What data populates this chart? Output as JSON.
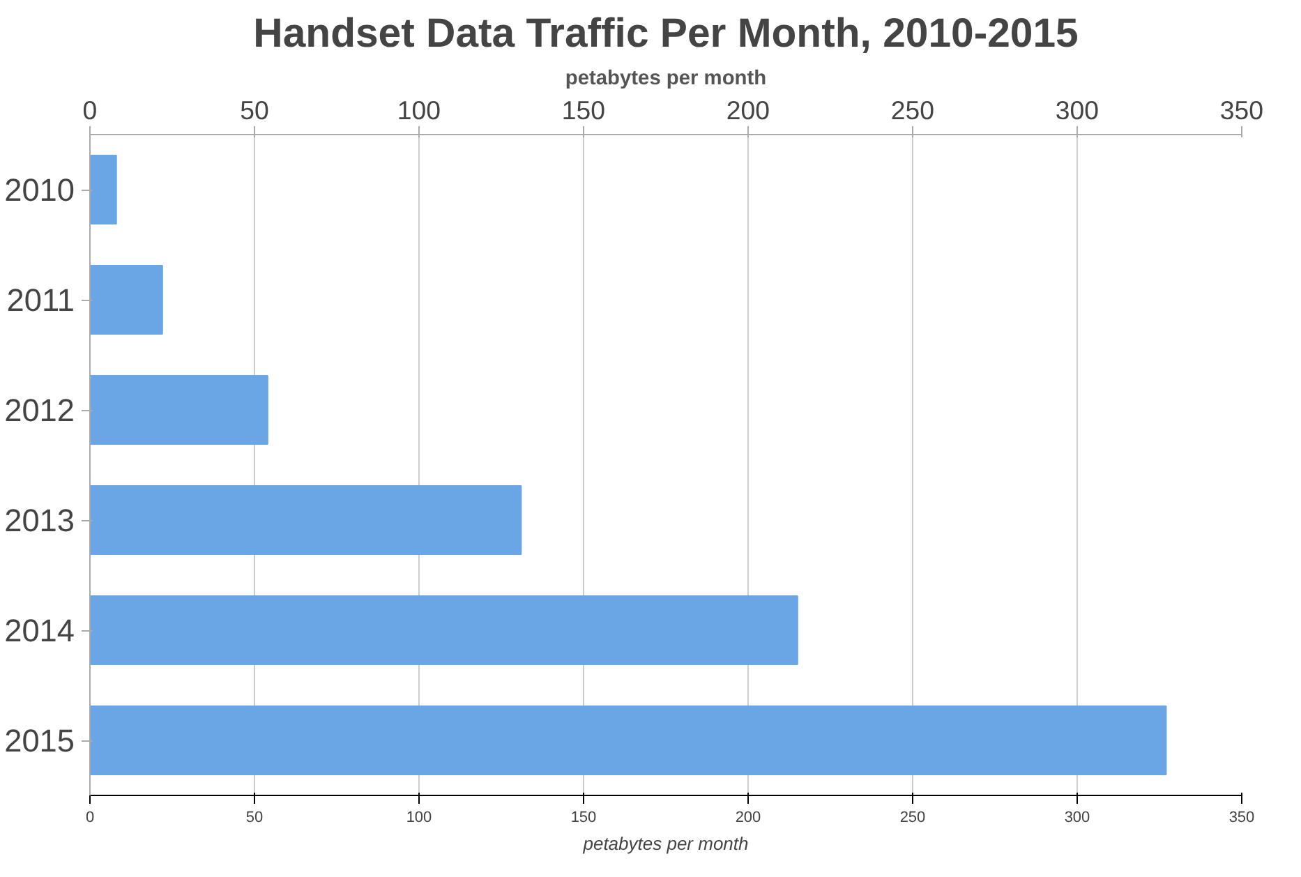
{
  "chart_data": {
    "type": "bar",
    "orientation": "horizontal",
    "title": "Handset Data Traffic Per Month, 2010-2015",
    "categories": [
      "2010",
      "2011",
      "2012",
      "2013",
      "2014",
      "2015"
    ],
    "values": [
      8,
      22,
      54,
      131,
      215,
      327
    ],
    "color": "#6aa6e6",
    "xlabel": "petabytes per month",
    "x2label": "petabytes per month",
    "xlim": [
      0,
      350
    ],
    "xticks": [
      0,
      50,
      100,
      150,
      200,
      250,
      300,
      350
    ],
    "x2lim": [
      0,
      350
    ],
    "x2ticks": [
      0,
      50,
      100,
      150,
      200,
      250,
      300,
      350
    ],
    "grid": "x"
  }
}
